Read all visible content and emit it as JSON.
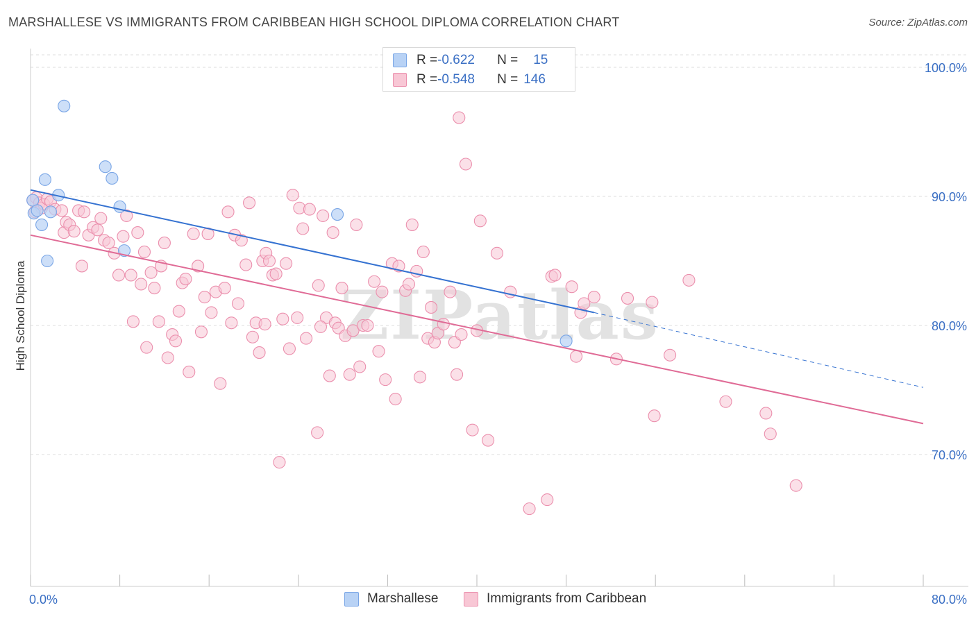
{
  "title": "MARSHALLESE VS IMMIGRANTS FROM CARIBBEAN HIGH SCHOOL DIPLOMA CORRELATION CHART",
  "source": "Source: ZipAtlas.com",
  "watermark": "ZIPatlas",
  "colors": {
    "blue_fill": "#b8d2f5",
    "blue_stroke": "#7aa6e6",
    "blue_line": "#3572d1",
    "pink_fill": "#f8c7d5",
    "pink_stroke": "#eb8fad",
    "pink_line": "#e06b96",
    "tick_label": "#3a6fc4",
    "grid": "#dddddd"
  },
  "legend": {
    "rows": [
      {
        "r_label": "R = ",
        "r_value": "-0.622",
        "n_label": "N = ",
        "n_value": "15",
        "series": "blue"
      },
      {
        "r_label": "R = ",
        "r_value": "-0.548",
        "n_label": "N = ",
        "n_value": "146",
        "series": "pink"
      }
    ]
  },
  "chart_data": {
    "type": "scatter",
    "title": "MARSHALLESE VS IMMIGRANTS FROM CARIBBEAN HIGH SCHOOL DIPLOMA CORRELATION CHART",
    "xlabel": "",
    "ylabel": "High School Diploma",
    "xlim": [
      0,
      80
    ],
    "ylim": [
      60.5,
      102
    ],
    "x_tick_labels": [
      "0.0%",
      "80.0%"
    ],
    "y_ticks": [
      70,
      80,
      90,
      100
    ],
    "y_tick_labels": [
      "70.0%",
      "80.0%",
      "90.0%",
      "100.0%"
    ],
    "grid": true,
    "legend_position": "top-center",
    "series": [
      {
        "name": "Marshallese",
        "color": "blue",
        "points": [
          [
            0.2,
            89.7
          ],
          [
            0.3,
            88.7
          ],
          [
            0.6,
            88.9
          ],
          [
            1.0,
            87.8
          ],
          [
            1.3,
            91.3
          ],
          [
            1.5,
            85.0
          ],
          [
            3.0,
            97.0
          ],
          [
            6.7,
            92.3
          ],
          [
            7.3,
            91.4
          ],
          [
            8.0,
            89.2
          ],
          [
            8.4,
            85.8
          ],
          [
            27.5,
            88.6
          ],
          [
            48.0,
            78.8
          ],
          [
            2.5,
            90.1
          ],
          [
            1.8,
            88.8
          ]
        ],
        "trend": {
          "x": [
            0,
            50.5
          ],
          "y": [
            90.5,
            81.0
          ],
          "dashed_to": [
            80,
            75.2
          ]
        }
      },
      {
        "name": "Immigrants from Caribbean",
        "color": "pink",
        "points": [
          [
            0.2,
            89.7
          ],
          [
            0.4,
            88.8
          ],
          [
            0.5,
            89.9
          ],
          [
            0.8,
            89.5
          ],
          [
            1.0,
            89.1
          ],
          [
            1.2,
            89.4
          ],
          [
            1.5,
            89.8
          ],
          [
            1.8,
            89.6
          ],
          [
            2.2,
            89.0
          ],
          [
            2.8,
            88.9
          ],
          [
            3.0,
            87.2
          ],
          [
            3.2,
            88.0
          ],
          [
            3.5,
            87.8
          ],
          [
            3.9,
            87.3
          ],
          [
            4.3,
            88.9
          ],
          [
            4.6,
            84.6
          ],
          [
            4.8,
            88.8
          ],
          [
            5.2,
            87.0
          ],
          [
            5.6,
            87.6
          ],
          [
            6.0,
            87.4
          ],
          [
            6.3,
            88.3
          ],
          [
            6.6,
            86.6
          ],
          [
            7.0,
            86.4
          ],
          [
            7.5,
            85.6
          ],
          [
            7.9,
            83.9
          ],
          [
            8.3,
            86.9
          ],
          [
            8.6,
            88.5
          ],
          [
            9.0,
            83.9
          ],
          [
            9.2,
            80.3
          ],
          [
            9.6,
            87.2
          ],
          [
            9.9,
            83.2
          ],
          [
            10.2,
            85.7
          ],
          [
            10.4,
            78.3
          ],
          [
            10.8,
            84.1
          ],
          [
            11.1,
            82.9
          ],
          [
            11.5,
            80.3
          ],
          [
            11.7,
            84.6
          ],
          [
            12.0,
            86.4
          ],
          [
            12.3,
            77.5
          ],
          [
            12.7,
            79.3
          ],
          [
            13.0,
            78.8
          ],
          [
            13.3,
            81.1
          ],
          [
            13.6,
            83.3
          ],
          [
            13.9,
            83.6
          ],
          [
            14.2,
            76.4
          ],
          [
            14.6,
            87.1
          ],
          [
            15.0,
            84.6
          ],
          [
            15.3,
            79.5
          ],
          [
            15.6,
            82.2
          ],
          [
            15.9,
            87.1
          ],
          [
            16.2,
            81.0
          ],
          [
            16.6,
            82.6
          ],
          [
            17.0,
            75.5
          ],
          [
            17.4,
            82.9
          ],
          [
            17.7,
            88.8
          ],
          [
            18.0,
            80.2
          ],
          [
            18.3,
            87.0
          ],
          [
            18.6,
            81.7
          ],
          [
            18.9,
            86.6
          ],
          [
            19.3,
            84.7
          ],
          [
            19.6,
            89.5
          ],
          [
            19.9,
            79.1
          ],
          [
            20.2,
            80.2
          ],
          [
            20.5,
            77.9
          ],
          [
            20.8,
            85.0
          ],
          [
            21.1,
            85.6
          ],
          [
            21.4,
            85.0
          ],
          [
            21.7,
            83.9
          ],
          [
            22.0,
            84.0
          ],
          [
            22.3,
            69.4
          ],
          [
            22.6,
            80.5
          ],
          [
            22.9,
            84.8
          ],
          [
            23.2,
            78.2
          ],
          [
            23.5,
            90.1
          ],
          [
            23.9,
            80.6
          ],
          [
            24.1,
            89.1
          ],
          [
            24.4,
            87.5
          ],
          [
            24.7,
            79.0
          ],
          [
            25.0,
            89.0
          ],
          [
            25.7,
            71.7
          ],
          [
            25.8,
            83.1
          ],
          [
            26.2,
            88.5
          ],
          [
            26.5,
            80.6
          ],
          [
            26.8,
            76.1
          ],
          [
            27.1,
            87.2
          ],
          [
            27.3,
            80.2
          ],
          [
            27.6,
            79.8
          ],
          [
            27.9,
            82.9
          ],
          [
            28.2,
            79.2
          ],
          [
            28.6,
            76.2
          ],
          [
            28.9,
            79.6
          ],
          [
            29.2,
            87.8
          ],
          [
            29.5,
            76.8
          ],
          [
            29.8,
            80.0
          ],
          [
            30.2,
            80.0
          ],
          [
            30.8,
            83.4
          ],
          [
            31.2,
            78.0
          ],
          [
            31.5,
            82.6
          ],
          [
            31.8,
            75.8
          ],
          [
            32.4,
            84.8
          ],
          [
            32.7,
            74.3
          ],
          [
            33.0,
            84.6
          ],
          [
            33.6,
            82.7
          ],
          [
            33.9,
            83.2
          ],
          [
            34.2,
            87.8
          ],
          [
            34.6,
            84.2
          ],
          [
            34.9,
            76.0
          ],
          [
            35.2,
            85.7
          ],
          [
            35.6,
            79.0
          ],
          [
            35.9,
            81.4
          ],
          [
            36.2,
            78.7
          ],
          [
            36.5,
            79.4
          ],
          [
            37.0,
            80.1
          ],
          [
            37.6,
            82.6
          ],
          [
            38.0,
            78.7
          ],
          [
            38.2,
            76.2
          ],
          [
            38.6,
            79.3
          ],
          [
            39.0,
            92.5
          ],
          [
            38.4,
            96.1
          ],
          [
            39.6,
            71.9
          ],
          [
            40.0,
            79.6
          ],
          [
            40.3,
            88.1
          ],
          [
            41.0,
            71.1
          ],
          [
            41.8,
            85.6
          ],
          [
            43.0,
            82.6
          ],
          [
            44.7,
            65.8
          ],
          [
            46.3,
            66.5
          ],
          [
            46.7,
            83.8
          ],
          [
            47.0,
            83.9
          ],
          [
            48.5,
            83.0
          ],
          [
            48.9,
            77.6
          ],
          [
            49.3,
            81.0
          ],
          [
            49.6,
            81.7
          ],
          [
            50.5,
            82.2
          ],
          [
            52.5,
            77.4
          ],
          [
            53.5,
            82.1
          ],
          [
            55.7,
            81.8
          ],
          [
            55.9,
            73.0
          ],
          [
            57.3,
            77.7
          ],
          [
            59.0,
            83.5
          ],
          [
            62.3,
            74.1
          ],
          [
            65.9,
            73.2
          ],
          [
            66.3,
            71.6
          ],
          [
            68.6,
            67.6
          ],
          [
            21.0,
            80.1
          ],
          [
            26.0,
            79.9
          ]
        ],
        "trend": {
          "x": [
            0,
            80
          ],
          "y": [
            87.0,
            72.4
          ]
        }
      }
    ]
  },
  "bottom_legend": [
    {
      "label": "Marshallese",
      "series": "blue"
    },
    {
      "label": "Immigrants from Caribbean",
      "series": "pink"
    }
  ]
}
